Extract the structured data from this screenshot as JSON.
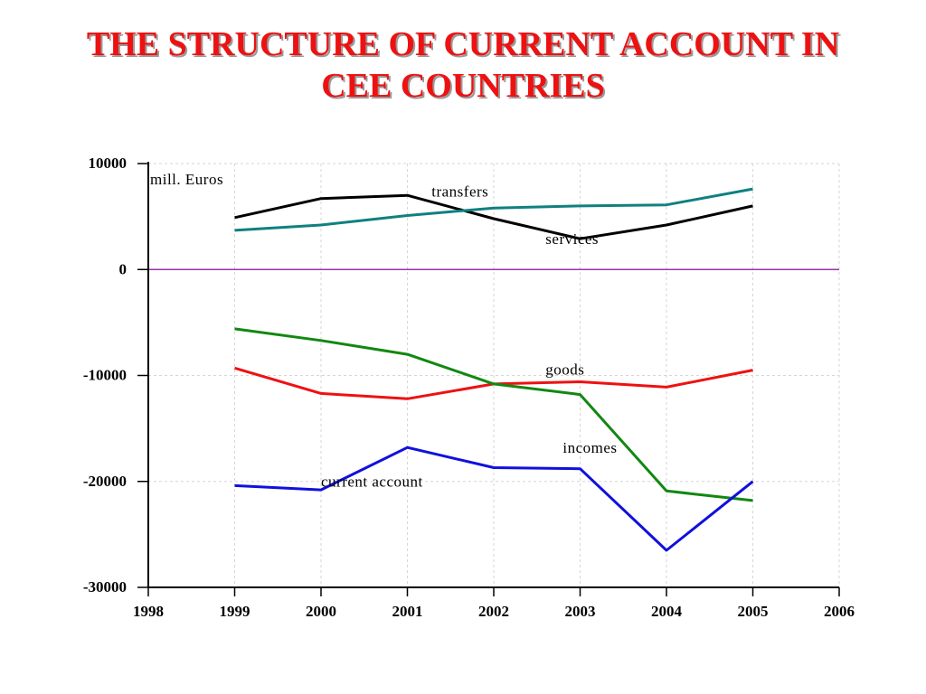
{
  "title_line1": "THE STRUCTURE OF CURRENT ACCOUNT IN",
  "title_line2": "CEE COUNTRIES",
  "chart_data": {
    "type": "line",
    "title": "THE STRUCTURE OF CURRENT ACCOUNT IN CEE COUNTRIES",
    "unit_label": "mill. Euros",
    "xlabel": "",
    "ylabel": "",
    "xlim": [
      1998,
      2006
    ],
    "ylim": [
      -30000,
      10000
    ],
    "x_ticks": [
      1998,
      1999,
      2000,
      2001,
      2002,
      2003,
      2004,
      2005,
      2006
    ],
    "y_ticks": [
      10000,
      0,
      -10000,
      -20000,
      -30000
    ],
    "grid": true,
    "legend": "inline labels",
    "x": [
      1999,
      2000,
      2001,
      2002,
      2003,
      2004,
      2005
    ],
    "series": [
      {
        "name": "services",
        "color": "#000000",
        "values": [
          4900,
          6700,
          7000,
          4800,
          2900,
          4200,
          6000
        ],
        "label_x": 2002.6,
        "label_y": 2400
      },
      {
        "name": "transfers",
        "color": "#108080",
        "values": [
          3700,
          4200,
          5100,
          5800,
          6000,
          6100,
          7600
        ],
        "label_x": 2001.28,
        "label_y": 6900
      },
      {
        "name": "goods",
        "color": "#ee1111",
        "values": [
          -9300,
          -11700,
          -12200,
          -10800,
          -10600,
          -11100,
          -9500
        ],
        "label_x": 2002.6,
        "label_y": -9900
      },
      {
        "name": "incomes",
        "color": "#118811",
        "values": [
          -5600,
          -6700,
          -8000,
          -10800,
          -11800,
          -20900,
          -21800
        ],
        "label_x": 2002.8,
        "label_y": -17300
      },
      {
        "name": "current account",
        "color": "#1010dd",
        "values": [
          -20400,
          -20800,
          -16800,
          -18700,
          -18800,
          -26500,
          -20000
        ],
        "label_x": 2000.0,
        "label_y": -20500
      }
    ]
  }
}
